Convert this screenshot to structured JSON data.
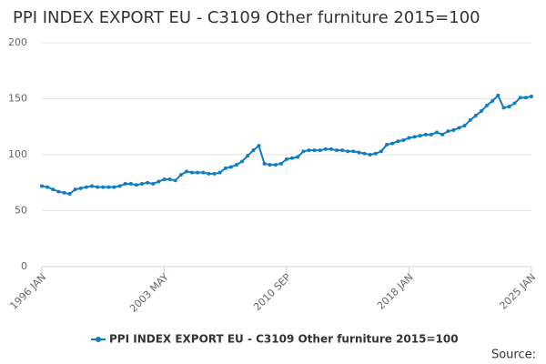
{
  "chart_data": {
    "type": "line",
    "title": "PPI INDEX EXPORT EU - C3109 Other furniture 2015=100",
    "categories": [
      "1996 JAN",
      null,
      null,
      null,
      null,
      null,
      null,
      null,
      null,
      null,
      null,
      null,
      null,
      null,
      null,
      null,
      null,
      null,
      null,
      null,
      null,
      null,
      "2003 MAY",
      null,
      null,
      null,
      null,
      null,
      null,
      null,
      null,
      null,
      null,
      null,
      null,
      null,
      null,
      null,
      null,
      null,
      null,
      null,
      null,
      null,
      "2010 SEP",
      null,
      null,
      null,
      null,
      null,
      null,
      null,
      null,
      null,
      null,
      null,
      null,
      null,
      null,
      null,
      null,
      null,
      null,
      null,
      null,
      null,
      "2018 JAN",
      null,
      null,
      null,
      null,
      null,
      null,
      null,
      null,
      null,
      null,
      null,
      null,
      null,
      null,
      null,
      null,
      null,
      null,
      null,
      null,
      null,
      "2025 JAN"
    ],
    "series": [
      {
        "name": "PPI INDEX EXPORT EU - C3109 Other furniture 2015=100",
        "color": "#0f7dc2",
        "values": [
          72,
          71,
          69,
          67,
          66,
          65,
          69,
          70,
          71,
          72,
          71,
          71,
          71,
          71,
          72,
          74,
          74,
          73,
          74,
          75,
          74,
          76,
          78,
          78,
          77,
          82,
          85,
          84,
          84,
          84,
          83,
          83,
          84,
          88,
          89,
          91,
          94,
          99,
          104,
          108,
          92,
          91,
          91,
          92,
          96,
          97,
          98,
          103,
          104,
          104,
          104,
          105,
          105,
          104,
          104,
          103,
          103,
          102,
          101,
          100,
          101,
          103,
          109,
          110,
          112,
          113,
          115,
          116,
          117,
          118,
          118,
          120,
          118,
          121,
          122,
          124,
          126,
          131,
          135,
          139,
          144,
          148,
          153,
          142,
          143,
          146,
          151,
          151,
          152
        ]
      }
    ],
    "ylim": [
      0,
      200
    ],
    "yticks": [
      0,
      50,
      100,
      150,
      200
    ],
    "grid": true,
    "source_label": "Source:"
  }
}
